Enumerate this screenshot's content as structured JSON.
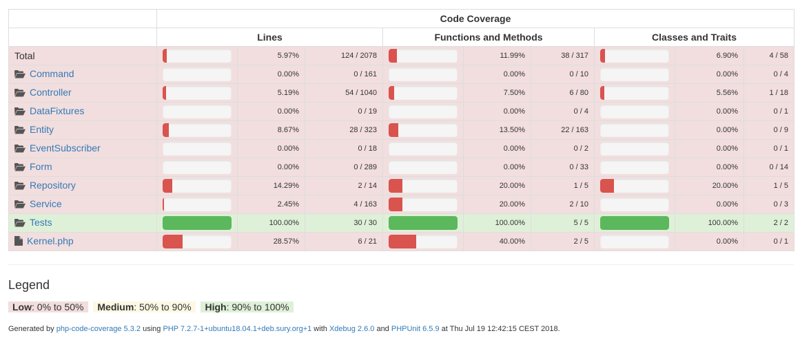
{
  "header": {
    "group_title": "Code Coverage",
    "lines": "Lines",
    "functions": "Functions and Methods",
    "classes": "Classes and Traits"
  },
  "rows": [
    {
      "name": "Total",
      "type": "total",
      "status": "danger",
      "lines_pct": 5.97,
      "lines_label": "5.97%",
      "lines_count": "124 / 2078",
      "func_pct": 11.99,
      "func_label": "11.99%",
      "func_count": "38 / 317",
      "cls_pct": 6.9,
      "cls_label": "6.90%",
      "cls_count": "4 / 58"
    },
    {
      "name": "Command",
      "type": "folder",
      "status": "danger",
      "lines_pct": 0,
      "lines_label": "0.00%",
      "lines_count": "0 / 161",
      "func_pct": 0,
      "func_label": "0.00%",
      "func_count": "0 / 10",
      "cls_pct": 0,
      "cls_label": "0.00%",
      "cls_count": "0 / 4"
    },
    {
      "name": "Controller",
      "type": "folder",
      "status": "danger",
      "lines_pct": 5.19,
      "lines_label": "5.19%",
      "lines_count": "54 / 1040",
      "func_pct": 7.5,
      "func_label": "7.50%",
      "func_count": "6 / 80",
      "cls_pct": 5.56,
      "cls_label": "5.56%",
      "cls_count": "1 / 18"
    },
    {
      "name": "DataFixtures",
      "type": "folder",
      "status": "danger",
      "lines_pct": 0,
      "lines_label": "0.00%",
      "lines_count": "0 / 19",
      "func_pct": 0,
      "func_label": "0.00%",
      "func_count": "0 / 4",
      "cls_pct": 0,
      "cls_label": "0.00%",
      "cls_count": "0 / 1"
    },
    {
      "name": "Entity",
      "type": "folder",
      "status": "danger",
      "lines_pct": 8.67,
      "lines_label": "8.67%",
      "lines_count": "28 / 323",
      "func_pct": 13.5,
      "func_label": "13.50%",
      "func_count": "22 / 163",
      "cls_pct": 0,
      "cls_label": "0.00%",
      "cls_count": "0 / 9"
    },
    {
      "name": "EventSubscriber",
      "type": "folder",
      "status": "danger",
      "lines_pct": 0,
      "lines_label": "0.00%",
      "lines_count": "0 / 18",
      "func_pct": 0,
      "func_label": "0.00%",
      "func_count": "0 / 2",
      "cls_pct": 0,
      "cls_label": "0.00%",
      "cls_count": "0 / 1"
    },
    {
      "name": "Form",
      "type": "folder",
      "status": "danger",
      "lines_pct": 0,
      "lines_label": "0.00%",
      "lines_count": "0 / 289",
      "func_pct": 0,
      "func_label": "0.00%",
      "func_count": "0 / 33",
      "cls_pct": 0,
      "cls_label": "0.00%",
      "cls_count": "0 / 14"
    },
    {
      "name": "Repository",
      "type": "folder",
      "status": "danger",
      "lines_pct": 14.29,
      "lines_label": "14.29%",
      "lines_count": "2 / 14",
      "func_pct": 20.0,
      "func_label": "20.00%",
      "func_count": "1 / 5",
      "cls_pct": 20.0,
      "cls_label": "20.00%",
      "cls_count": "1 / 5"
    },
    {
      "name": "Service",
      "type": "folder",
      "status": "danger",
      "lines_pct": 2.45,
      "lines_label": "2.45%",
      "lines_count": "4 / 163",
      "func_pct": 20.0,
      "func_label": "20.00%",
      "func_count": "2 / 10",
      "cls_pct": 0,
      "cls_label": "0.00%",
      "cls_count": "0 / 3"
    },
    {
      "name": "Tests",
      "type": "folder",
      "status": "success",
      "lines_pct": 100,
      "lines_label": "100.00%",
      "lines_count": "30 / 30",
      "func_pct": 100,
      "func_label": "100.00%",
      "func_count": "5 / 5",
      "cls_pct": 100,
      "cls_label": "100.00%",
      "cls_count": "2 / 2"
    },
    {
      "name": "Kernel.php",
      "type": "file",
      "status": "danger",
      "lines_pct": 28.57,
      "lines_label": "28.57%",
      "lines_count": "6 / 21",
      "func_pct": 40.0,
      "func_label": "40.00%",
      "func_count": "2 / 5",
      "cls_pct": 0,
      "cls_label": "0.00%",
      "cls_count": "0 / 1"
    }
  ],
  "legend": {
    "title": "Legend",
    "low_label": "Low",
    "low_range": ": 0% to 50%",
    "medium_label": "Medium",
    "medium_range": ": 50% to 90%",
    "high_label": "High",
    "high_range": ": 90% to 100%"
  },
  "footer": {
    "t1": "Generated by ",
    "link1": "php-code-coverage 5.3.2",
    "t2": " using ",
    "link2": "PHP 7.2.7-1+ubuntu18.04.1+deb.sury.org+1",
    "t3": " with ",
    "link3": "Xdebug 2.6.0",
    "t4": " and ",
    "link4": "PHPUnit 6.5.9",
    "t5": " at Thu Jul 19 12:42:15 CEST 2018."
  },
  "icons": {
    "folder": "folder-open-icon",
    "file": "file-icon"
  },
  "colors": {
    "low": "#d9534f",
    "high": "#5cb85c",
    "danger_bg": "#f2dede",
    "success_bg": "#dff0d8",
    "link": "#337ab7"
  }
}
